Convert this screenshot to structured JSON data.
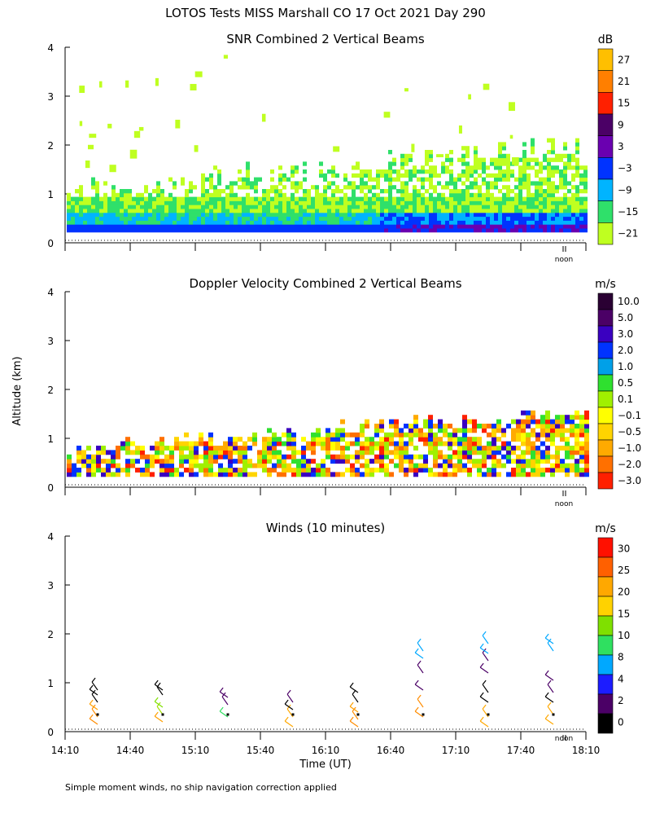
{
  "figure": {
    "title": "LOTOS Tests MISS Marshall CO  17 Oct 2021 Day 290",
    "ylabel": "Altitude (km)",
    "xlabel": "Time (UT)",
    "footnote": "Simple moment winds, no ship navigation correction applied",
    "noon_label": "noon"
  },
  "chart_data": [
    {
      "type": "heatmap",
      "title": "SNR Combined 2 Vertical Beams",
      "xlabel": "Time (UT)",
      "ylabel": "Altitude (km)",
      "xlim": [
        "14:10",
        "18:10"
      ],
      "ylim": [
        0,
        4
      ],
      "yticks": [
        "0",
        "1",
        "2",
        "3",
        "4"
      ],
      "colorbar": {
        "unit": "dB",
        "labels": [
          "27",
          "21",
          "15",
          "9",
          "3",
          "−3",
          "−9",
          "−15",
          "−21"
        ],
        "colors": [
          "#ffbf00",
          "#ff7f00",
          "#ff2000",
          "#4b0066",
          "#6a00b0",
          "#0033ff",
          "#00b4ff",
          "#2fe06a",
          "#bfff20"
        ]
      }
    },
    {
      "type": "heatmap",
      "title": "Doppler Velocity Combined 2 Vertical Beams",
      "xlabel": "Time (UT)",
      "ylabel": "Altitude (km)",
      "xlim": [
        "14:10",
        "18:10"
      ],
      "ylim": [
        0,
        4
      ],
      "yticks": [
        "0",
        "1",
        "2",
        "3",
        "4"
      ],
      "colorbar": {
        "unit": "m/s",
        "labels": [
          "10.0",
          "5.0",
          "3.0",
          "2.0",
          "1.0",
          "0.5",
          "0.1",
          "−0.1",
          "−0.5",
          "−1.0",
          "−2.0",
          "−3.0"
        ],
        "colors": [
          "#2a0033",
          "#4b0066",
          "#3a00c0",
          "#0033ff",
          "#00a0e8",
          "#2fe02f",
          "#a0f000",
          "#ffff00",
          "#ffd400",
          "#ffaa00",
          "#ff7000",
          "#ff2000"
        ]
      }
    },
    {
      "type": "scatter",
      "title": "Winds (10 minutes)",
      "xlabel": "Time (UT)",
      "ylabel": "Altitude (km)",
      "xlim": [
        "14:10",
        "18:10"
      ],
      "ylim": [
        0,
        4
      ],
      "yticks": [
        "0",
        "1",
        "2",
        "3",
        "4"
      ],
      "xticks": [
        "14:10",
        "14:40",
        "15:10",
        "15:40",
        "16:10",
        "16:40",
        "17:10",
        "17:40",
        "18:10"
      ],
      "colorbar": {
        "unit": "m/s",
        "labels": [
          "30",
          "25",
          "20",
          "15",
          "10",
          "8",
          "4",
          "2",
          "0"
        ],
        "colors": [
          "#ff1000",
          "#ff6000",
          "#ffa800",
          "#ffd200",
          "#7fe000",
          "#2fe060",
          "#00a8ff",
          "#1c1cff",
          "#4b0066",
          "#000000"
        ]
      },
      "profiles": [
        {
          "time": "14:25",
          "barbs": [
            [
              0.15,
              "#ff8c00"
            ],
            [
              0.3,
              "#ff8c00"
            ],
            [
              0.45,
              "#ffa000"
            ],
            [
              0.6,
              "#000"
            ],
            [
              0.75,
              "#000"
            ],
            [
              0.85,
              "#000"
            ]
          ]
        },
        {
          "time": "14:55",
          "barbs": [
            [
              0.2,
              "#ffa000"
            ],
            [
              0.35,
              "#a0e000"
            ],
            [
              0.5,
              "#7fe000"
            ],
            [
              0.75,
              "#000"
            ],
            [
              0.85,
              "#000"
            ]
          ]
        },
        {
          "time": "15:25",
          "barbs": [
            [
              0.3,
              "#2fe060"
            ],
            [
              0.55,
              "#4b0066"
            ],
            [
              0.7,
              "#4b0066"
            ]
          ]
        },
        {
          "time": "15:55",
          "barbs": [
            [
              0.1,
              "#ffa800"
            ],
            [
              0.3,
              "#ffa800"
            ],
            [
              0.45,
              "#000"
            ],
            [
              0.6,
              "#4b0066"
            ]
          ]
        },
        {
          "time": "16:25",
          "barbs": [
            [
              0.1,
              "#ff8c00"
            ],
            [
              0.25,
              "#ff8c00"
            ],
            [
              0.4,
              "#ffa000"
            ],
            [
              0.6,
              "#000"
            ],
            [
              0.8,
              "#000"
            ]
          ]
        },
        {
          "time": "16:55",
          "barbs": [
            [
              0.3,
              "#ff8c00"
            ],
            [
              0.5,
              "#ff8c00"
            ],
            [
              0.85,
              "#4b0066"
            ],
            [
              1.2,
              "#4b0066"
            ],
            [
              1.5,
              "#00a8ff"
            ],
            [
              1.65,
              "#00a8ff"
            ]
          ]
        },
        {
          "time": "17:25",
          "barbs": [
            [
              0.1,
              "#ffa800"
            ],
            [
              0.3,
              "#ffa800"
            ],
            [
              0.6,
              "#000"
            ],
            [
              0.8,
              "#000"
            ],
            [
              1.2,
              "#4b0066"
            ],
            [
              1.45,
              "#4b0066"
            ],
            [
              1.6,
              "#00a8ff"
            ],
            [
              1.8,
              "#00a8ff"
            ]
          ]
        },
        {
          "time": "17:55",
          "barbs": [
            [
              0.15,
              "#ffa800"
            ],
            [
              0.35,
              "#ffa800"
            ],
            [
              0.6,
              "#000"
            ],
            [
              0.8,
              "#4b0066"
            ],
            [
              1.05,
              "#4b0066"
            ],
            [
              1.65,
              "#00a8ff"
            ],
            [
              1.8,
              "#00a8ff"
            ]
          ]
        }
      ]
    }
  ]
}
